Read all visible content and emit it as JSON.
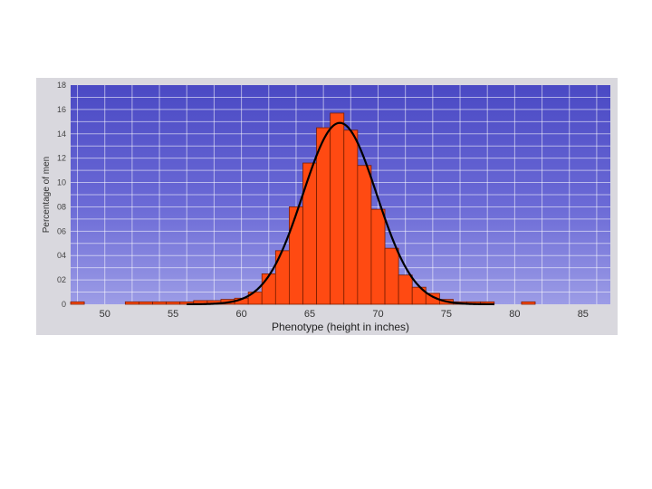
{
  "chart_data": {
    "type": "bar",
    "title": "",
    "xlabel": "Phenotype (height in inches)",
    "ylabel": "Percentage of men",
    "xlim": [
      47.5,
      87
    ],
    "ylim": [
      0,
      18
    ],
    "x_ticks": [
      50,
      55,
      60,
      65,
      70,
      75,
      80,
      85
    ],
    "y_ticks": [
      0,
      2,
      4,
      6,
      8,
      10,
      12,
      14,
      16,
      18
    ],
    "y_tick_labels": [
      "0",
      "02",
      "04",
      "06",
      "08",
      "10",
      "12",
      "14",
      "16",
      "18"
    ],
    "grid": true,
    "bin_width": 1,
    "bins": [
      {
        "x": 48,
        "value": 0.2
      },
      {
        "x": 52,
        "value": 0.2
      },
      {
        "x": 53,
        "value": 0.2
      },
      {
        "x": 54,
        "value": 0.2
      },
      {
        "x": 55,
        "value": 0.2
      },
      {
        "x": 56,
        "value": 0.2
      },
      {
        "x": 57,
        "value": 0.3
      },
      {
        "x": 58,
        "value": 0.3
      },
      {
        "x": 59,
        "value": 0.4
      },
      {
        "x": 60,
        "value": 0.5
      },
      {
        "x": 61,
        "value": 1.0
      },
      {
        "x": 62,
        "value": 2.5
      },
      {
        "x": 63,
        "value": 4.4
      },
      {
        "x": 64,
        "value": 8.0
      },
      {
        "x": 65,
        "value": 11.6
      },
      {
        "x": 66,
        "value": 14.5
      },
      {
        "x": 67,
        "value": 15.7
      },
      {
        "x": 68,
        "value": 14.3
      },
      {
        "x": 69,
        "value": 11.4
      },
      {
        "x": 70,
        "value": 7.8
      },
      {
        "x": 71,
        "value": 4.6
      },
      {
        "x": 72,
        "value": 2.4
      },
      {
        "x": 73,
        "value": 1.4
      },
      {
        "x": 74,
        "value": 0.9
      },
      {
        "x": 75,
        "value": 0.4
      },
      {
        "x": 76,
        "value": 0.2
      },
      {
        "x": 77,
        "value": 0.2
      },
      {
        "x": 78,
        "value": 0.2
      },
      {
        "x": 81,
        "value": 0.2
      }
    ],
    "fit_curve": {
      "type": "normal",
      "mean": 67.2,
      "sd": 2.7,
      "peak": 14.9
    },
    "colors": {
      "plot_background": "#5b5bd0",
      "bar_fill": "#ff4a12",
      "bar_stroke": "#7a1d00",
      "curve": "#000000",
      "grid": "#ffffff"
    }
  }
}
